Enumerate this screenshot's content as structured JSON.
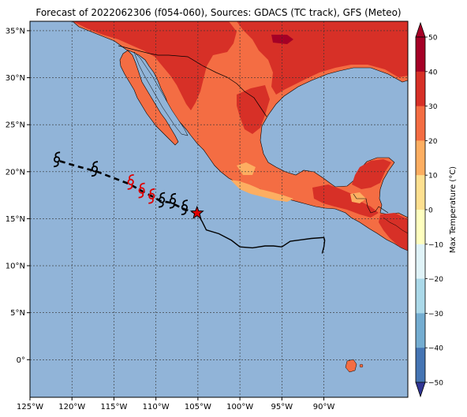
{
  "title": "Forecast of 2022062306 (f054-060), Sources: GDACS (TC track), GFS (Meteo)",
  "map": {
    "lon_range": [
      -125,
      -80
    ],
    "lat_range": [
      -4,
      36
    ],
    "lon_ticks": [
      {
        "lon": -125,
        "label": "125°W"
      },
      {
        "lon": -120,
        "label": "120°W"
      },
      {
        "lon": -115,
        "label": "115°W"
      },
      {
        "lon": -110,
        "label": "110°W"
      },
      {
        "lon": -105,
        "label": "105°W"
      },
      {
        "lon": -100,
        "label": "100°W"
      },
      {
        "lon": -95,
        "label": "95°W"
      },
      {
        "lon": -90,
        "label": "90°W"
      }
    ],
    "lat_ticks": [
      {
        "lat": 35,
        "label": "35°N"
      },
      {
        "lat": 30,
        "label": "30°N"
      },
      {
        "lat": 25,
        "label": "25°N"
      },
      {
        "lat": 20,
        "label": "20°N"
      },
      {
        "lat": 15,
        "label": "15°N"
      },
      {
        "lat": 10,
        "label": "10°N"
      },
      {
        "lat": 5,
        "label": "5°N"
      },
      {
        "lat": 0,
        "label": "0°"
      }
    ],
    "grid": true,
    "colors": {
      "ocean": "#91b4d8",
      "land_warm": "#f46d43",
      "land_hot": "#d73027",
      "land_mild": "#fdae61",
      "land_very_hot": "#a50026",
      "border": "#000000"
    }
  },
  "colorbar": {
    "label": "Max Temperature (°C)",
    "ticks": [
      "50",
      "40",
      "30",
      "20",
      "10",
      "0",
      "−10",
      "−20",
      "−30",
      "−40",
      "−50"
    ],
    "colors": [
      "#a50026",
      "#d73027",
      "#f46d43",
      "#fdae61",
      "#fee090",
      "#ffffbf",
      "#e0f3f8",
      "#abd9e9",
      "#74add1",
      "#4575b4",
      "#313695"
    ]
  },
  "tc_track": {
    "current_position": {
      "lon": -105.1,
      "lat": 15.6
    },
    "past_track": [
      [
        -105.1,
        15.6
      ],
      [
        -104.5,
        14.7
      ],
      [
        -104.0,
        13.8
      ],
      [
        -102.5,
        13.4
      ],
      [
        -101.0,
        12.7
      ],
      [
        -100.0,
        12.0
      ],
      [
        -98.5,
        11.9
      ],
      [
        -97.0,
        12.1
      ],
      [
        -96.0,
        12.1
      ],
      [
        -95.0,
        12.0
      ],
      [
        -94.0,
        12.6
      ],
      [
        -91.5,
        12.9
      ],
      [
        -90.0,
        13.0
      ],
      [
        -89.9,
        12.7
      ],
      [
        -90.0,
        12.0
      ],
      [
        -90.2,
        11.3
      ]
    ],
    "forecast_track": [
      [
        -105.1,
        15.6
      ],
      [
        -106.6,
        16.0
      ],
      [
        -108.2,
        16.7
      ],
      [
        -109.5,
        16.9
      ],
      [
        -110.5,
        17.4
      ],
      [
        -111.8,
        18.0
      ],
      [
        -113.2,
        18.7
      ],
      [
        -117.0,
        20.0
      ],
      [
        -119.5,
        20.6
      ],
      [
        -121.7,
        21.2
      ]
    ],
    "forecast_symbols": [
      {
        "lon": -121.8,
        "lat": 21.3,
        "color": "#000000",
        "glyph": "hurricane-symbol"
      },
      {
        "lon": -117.3,
        "lat": 20.3,
        "color": "#000000",
        "glyph": "hurricane-symbol"
      },
      {
        "lon": -113.0,
        "lat": 18.9,
        "color": "#e00000",
        "glyph": "hurricane-symbol"
      },
      {
        "lon": -111.7,
        "lat": 18.0,
        "color": "#e00000",
        "glyph": "hurricane-symbol"
      },
      {
        "lon": -110.5,
        "lat": 17.4,
        "color": "#e00000",
        "glyph": "hurricane-symbol"
      },
      {
        "lon": -109.3,
        "lat": 17.0,
        "color": "#000000",
        "glyph": "hurricane-symbol"
      },
      {
        "lon": -108.0,
        "lat": 16.9,
        "color": "#000000",
        "glyph": "hurricane-symbol"
      },
      {
        "lon": -106.6,
        "lat": 16.2,
        "color": "#000000",
        "glyph": "hurricane-symbol"
      }
    ]
  }
}
